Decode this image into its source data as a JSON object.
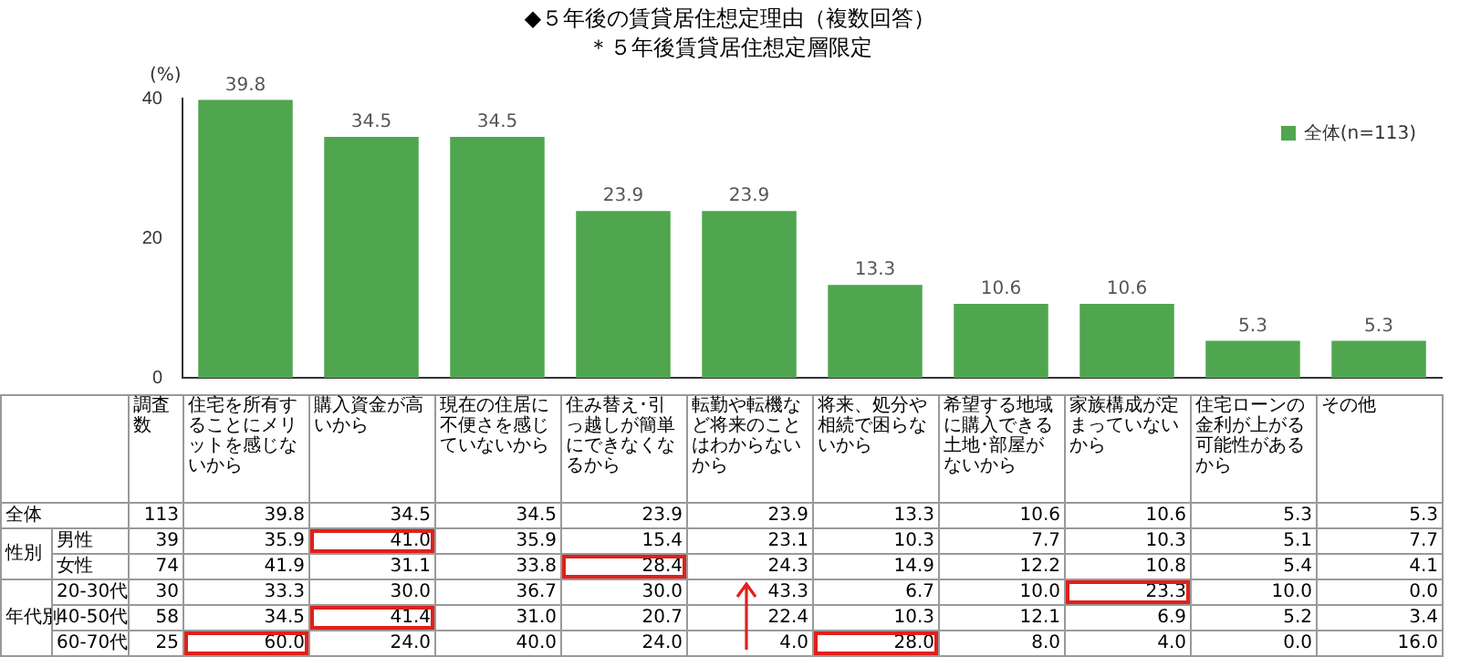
{
  "chart_data": {
    "type": "bar",
    "title": "◆５年後の賃貸居住想定理由（複数回答）",
    "subtitle": "＊５年後賃貸居住想定層限定",
    "ylabel": "(%)",
    "categories": [
      "住宅を所有することにメリットを感じないから",
      "購入資金が高いから",
      "現在の住居に不便さを感じていないから",
      "住み替え･引っ越しが簡単にできなくなるから",
      "転勤や転機など将来のことはわからないから",
      "将来、処分や相続で困らないから",
      "希望する地域に購入できる土地･部屋がないから",
      "家族構成が定まっていないから",
      "住宅ローンの金利が上がる可能性があるから",
      "その他"
    ],
    "series": [
      {
        "name": "全体(n=113)",
        "color": "#4fa64f",
        "values": [
          39.8,
          34.5,
          34.5,
          23.9,
          23.9,
          13.3,
          10.6,
          10.6,
          5.3,
          5.3
        ],
        "value_labels": [
          "39.8",
          "34.5",
          "34.5",
          "23.9",
          "23.9",
          "13.3",
          "10.6",
          "10.6",
          "5.3",
          "5.3"
        ]
      }
    ],
    "ylim": [
      0,
      40
    ],
    "yticks": [
      0,
      20,
      40
    ],
    "grid": false,
    "legend": "top right",
    "annotations": [
      "調査数",
      "全体",
      "113 39.8 34.5 34.5 23.9 23.9 13.3 10.6 10.6 5.3 5.3",
      "性別",
      "男性",
      "39 35.9 41.0 35.9 15.4 23.1 10.3 7.7 10.3 5.1 7.7",
      "女性",
      "74 41.9 31.1 33.8 28.4 24.3 14.9 12.2 10.8 5.4 4.1",
      "年代別",
      "20-30代",
      "30 33.3 30.0 36.7 30.0 43.3 6.7 10.0 23.3 10.0 0.0",
      "40-50代",
      "58 34.5 41.4 31.0 20.7 22.4 10.3 12.1 6.9 5.2 3.4",
      "60-70代",
      "25 60.0 24.0 40.0 24.0 4.0 28.0 8.0 4.0 0.0 16.0"
    ]
  }
}
